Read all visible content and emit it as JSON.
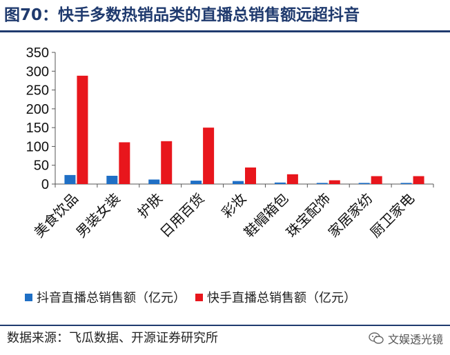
{
  "header": {
    "title": "图70：快手多数热销品类的直播总销售额远超抖音"
  },
  "footer": {
    "source": "数据来源：飞瓜数据、开源证券研究所",
    "watermark": "文娱透光镜"
  },
  "colors": {
    "douyin": "#1f6fc5",
    "kuaishou": "#e8161c",
    "title": "#1f3a6e",
    "axis": "#555555"
  },
  "chart_data": {
    "type": "bar",
    "categories": [
      "美食饮品",
      "男装女装",
      "护肤",
      "日用百货",
      "彩妆",
      "鞋帽箱包",
      "珠宝配饰",
      "家居家纺",
      "厨卫家电"
    ],
    "series": [
      {
        "name": "抖音直播总销售额（亿元）",
        "values": [
          24,
          22,
          12,
          9,
          8,
          4,
          3,
          3,
          3
        ]
      },
      {
        "name": "快手直播总销售额（亿元）",
        "values": [
          288,
          111,
          114,
          150,
          44,
          26,
          10,
          21,
          21
        ]
      }
    ],
    "title": "",
    "xlabel": "",
    "ylabel": "",
    "ylim": [
      0,
      350
    ],
    "yticks": [
      0,
      50,
      100,
      150,
      200,
      250,
      300,
      350
    ],
    "legend_position": "bottom-left",
    "grid": false
  }
}
